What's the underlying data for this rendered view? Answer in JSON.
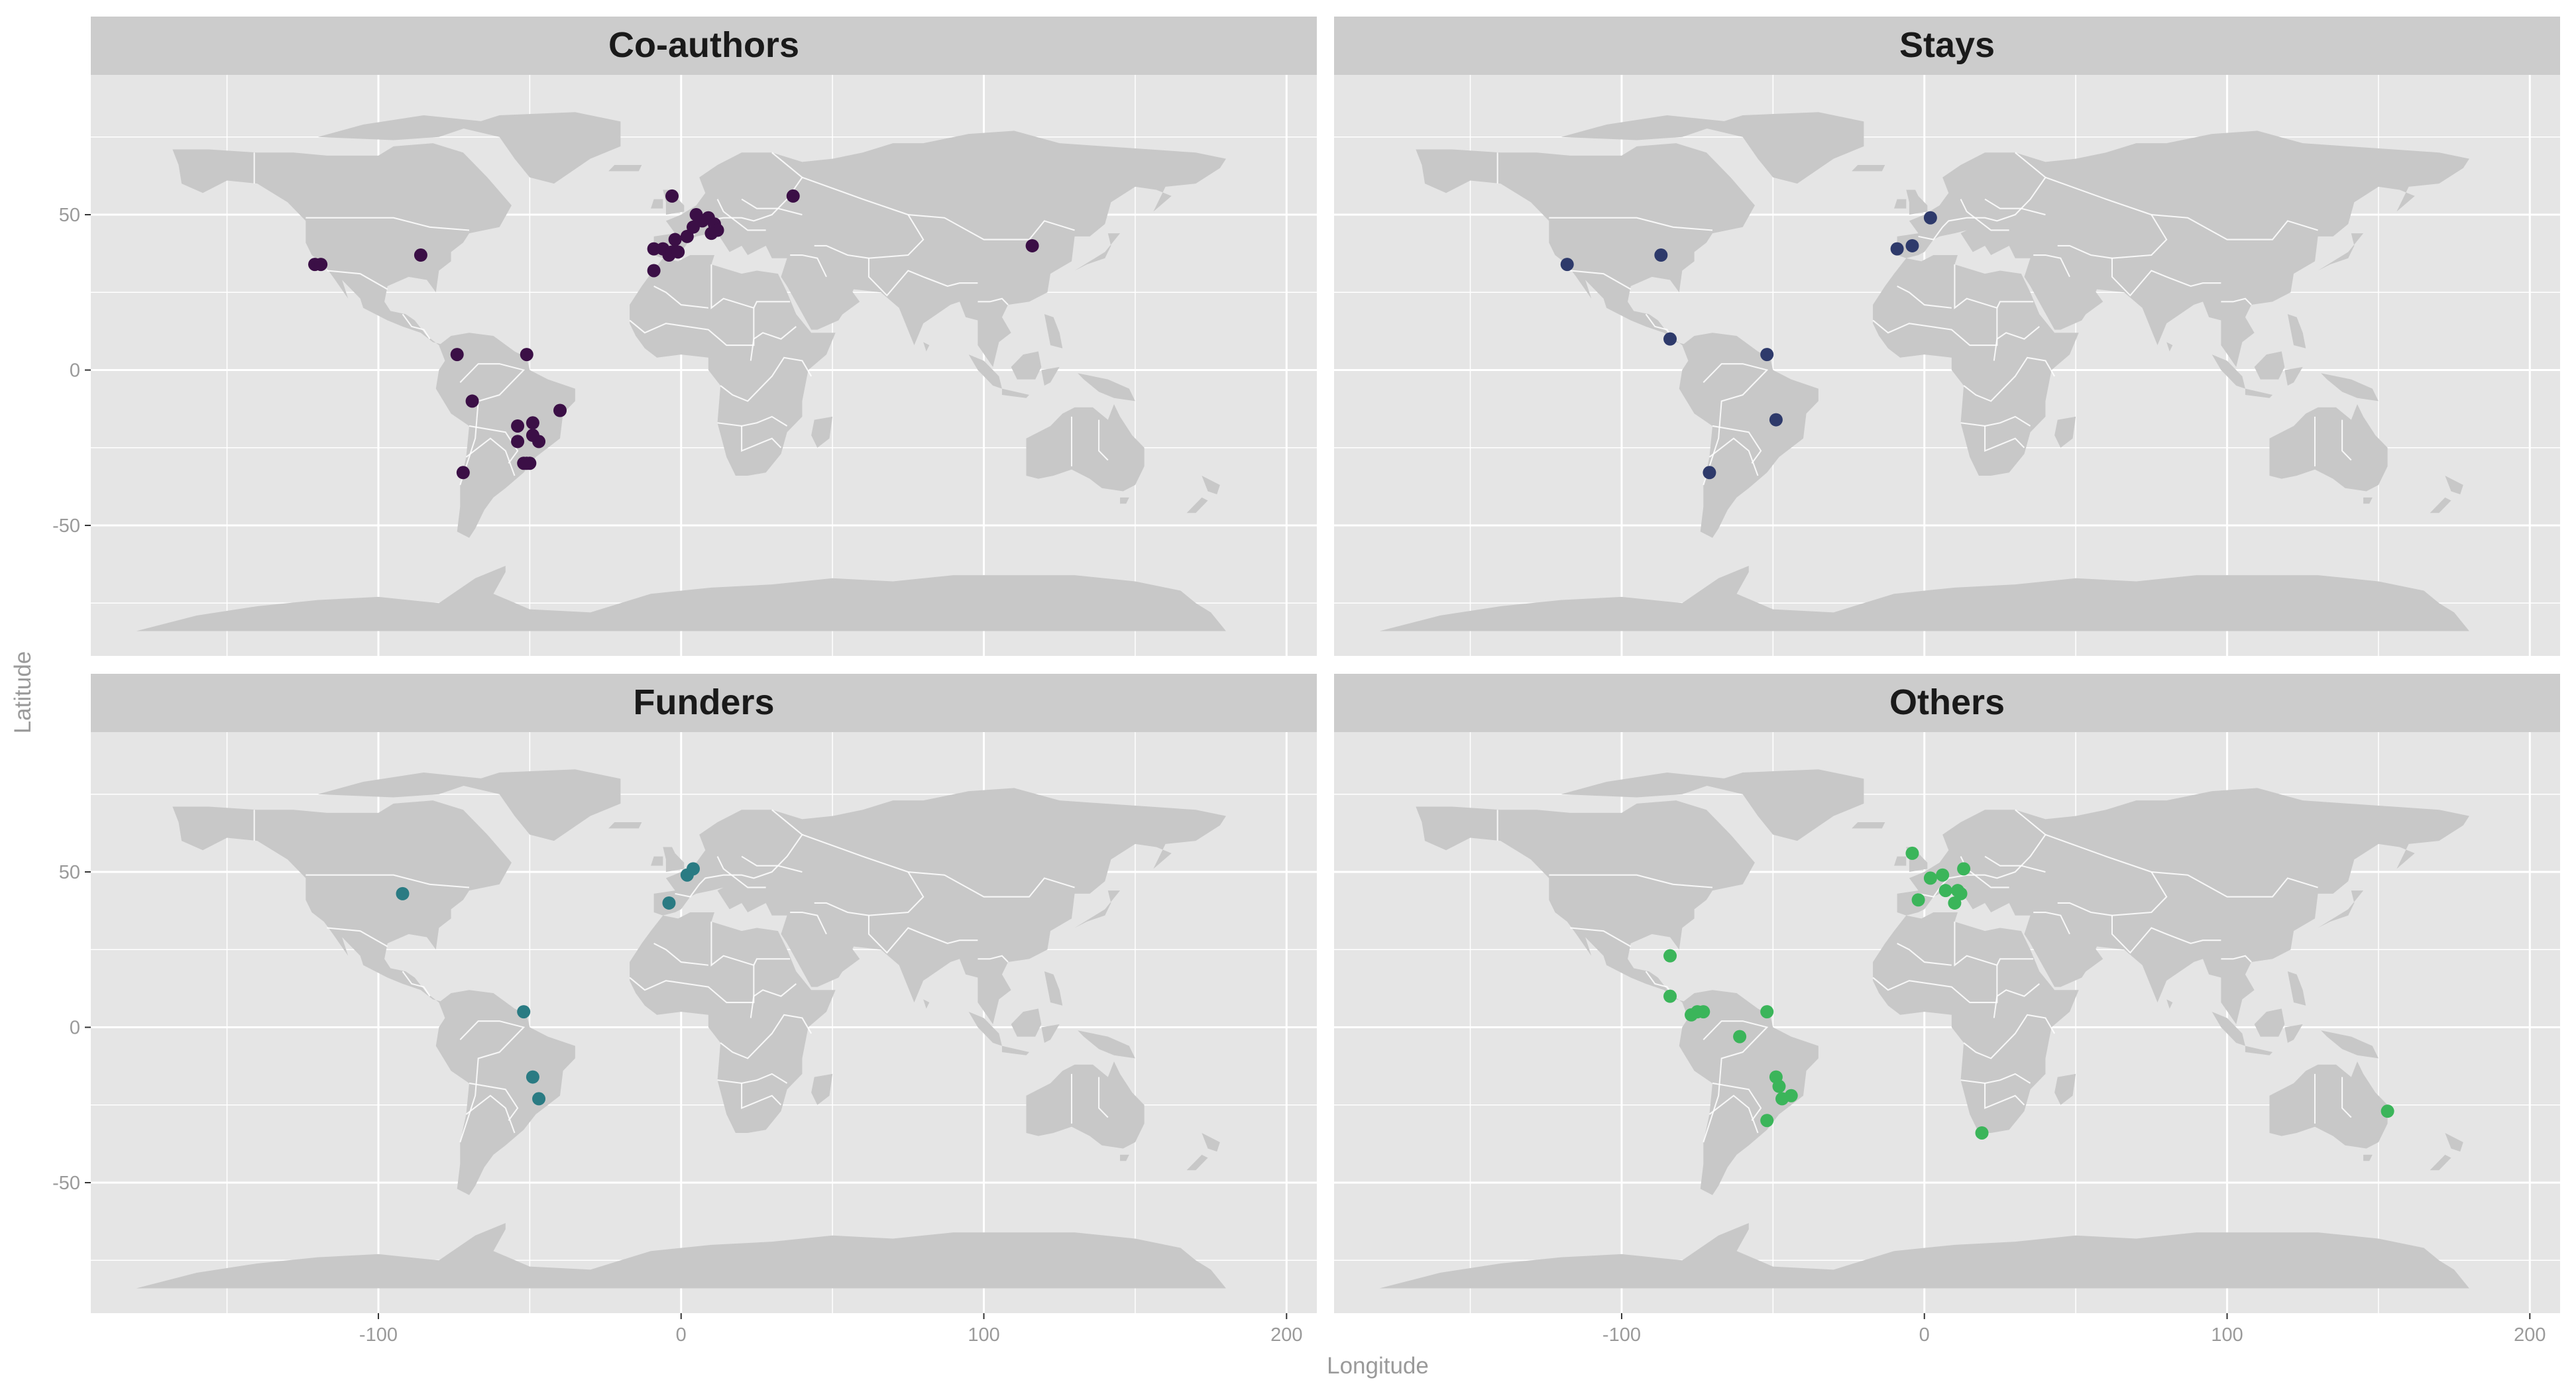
{
  "axes": {
    "xlabel": "Longitude",
    "ylabel": "Latitude",
    "x_ticks": [
      -100,
      0,
      100,
      200
    ],
    "y_ticks": [
      -50,
      0,
      50
    ],
    "xlim": [
      -195,
      210
    ],
    "ylim": [
      -92,
      95
    ],
    "grid": true
  },
  "colors": {
    "panel_bg": "#e5e5e5",
    "strip_bg": "#cccccc",
    "land": "#c8c8c8",
    "grid": "#ffffff",
    "axis_text": "#9a9a9a",
    "Co-authors": "#3b0f46",
    "Stays": "#2e3a6b",
    "Funders": "#2a7b83",
    "Others": "#3bb55a"
  },
  "chart_data": [
    {
      "type": "scatter",
      "title": "Co-authors",
      "x": [
        -121,
        -119,
        -86,
        -74,
        -69,
        -51,
        -54,
        -49,
        -47,
        -40,
        -54,
        -49,
        -52,
        -50,
        -51,
        -72,
        -9,
        -6,
        -4,
        -3,
        -1,
        -9,
        -2,
        2,
        4,
        7,
        5,
        9,
        11,
        12,
        10,
        -3,
        37,
        116
      ],
      "y": [
        34,
        34,
        37,
        5,
        -10,
        5,
        -18,
        -17,
        -23,
        -13,
        -23,
        -21,
        -30,
        -30,
        -30,
        -33,
        39,
        39,
        37,
        38,
        38,
        32,
        42,
        43,
        46,
        48,
        50,
        49,
        47,
        45,
        44,
        56,
        56,
        40
      ]
    },
    {
      "type": "scatter",
      "title": "Stays",
      "x": [
        -118,
        -87,
        -84,
        -52,
        -49,
        -71,
        -9,
        -4,
        2
      ],
      "y": [
        34,
        37,
        10,
        5,
        -16,
        -33,
        39,
        40,
        49
      ]
    },
    {
      "type": "scatter",
      "title": "Funders",
      "x": [
        -92,
        -52,
        -49,
        -47,
        -4,
        2,
        4
      ],
      "y": [
        43,
        5,
        -16,
        -23,
        40,
        49,
        51
      ]
    },
    {
      "type": "scatter",
      "title": "Others",
      "x": [
        -84,
        -84,
        -77,
        -75,
        -73,
        -52,
        -61,
        -49,
        -48,
        -47,
        -44,
        -52,
        -4,
        -2,
        2,
        6,
        7,
        11,
        13,
        12,
        10,
        19,
        153
      ],
      "y": [
        23,
        10,
        4,
        5,
        5,
        5,
        -3,
        -16,
        -19,
        -23,
        -22,
        -30,
        56,
        41,
        48,
        49,
        44,
        44,
        51,
        43,
        40,
        -34,
        -27
      ]
    }
  ]
}
